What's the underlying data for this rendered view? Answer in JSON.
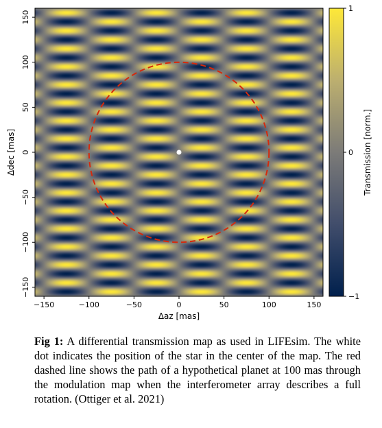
{
  "chart_data": {
    "type": "heatmap",
    "title": "",
    "xlabel": "Δaz [mas]",
    "ylabel": "Δdec [mas]",
    "xlim": [
      -160,
      160
    ],
    "ylim": [
      -160,
      160
    ],
    "x_ticks": [
      -150,
      -100,
      -50,
      0,
      50,
      100,
      150
    ],
    "x_tick_labels": [
      "−150",
      "−100",
      "−50",
      "0",
      "50",
      "100",
      "150"
    ],
    "y_ticks": [
      -150,
      -100,
      -50,
      0,
      50,
      100,
      150
    ],
    "y_tick_labels": [
      "−150",
      "−100",
      "−50",
      "0",
      "50",
      "100",
      "150"
    ],
    "colorbar": {
      "label": "Transmission [norm.]",
      "range": [
        -1,
        1
      ],
      "ticks": [
        -1,
        0,
        1
      ],
      "tick_labels": [
        "−1",
        "0",
        "1"
      ],
      "colormap": "cividis",
      "color_low": "#00204d",
      "color_mid": "#7c7b78",
      "color_high": "#fee838"
    },
    "pattern": {
      "description_of_function": "sin(2π·Δaz/100)·sin(2π·Δdec/20)",
      "az_period_mas": 100,
      "dec_period_mas": 20
    },
    "annotations": [
      {
        "type": "point",
        "name": "star",
        "x": 0,
        "y": 0,
        "color": "#ffffff"
      },
      {
        "type": "circle",
        "name": "planet path",
        "center": [
          0,
          0
        ],
        "radius_mas": 100,
        "color": "#d62a0c",
        "style": "dashed"
      }
    ]
  },
  "caption": {
    "label": "Fig 1:",
    "text": " A differential transmission map as used in LIFEsim. The white dot indicates the position of the star in the center of the map. The red dashed line shows the path of a hypothetical planet at 100 mas through the modulation map when the interferometer array describes a full rotation. (Ottiger et al. 2021)"
  }
}
